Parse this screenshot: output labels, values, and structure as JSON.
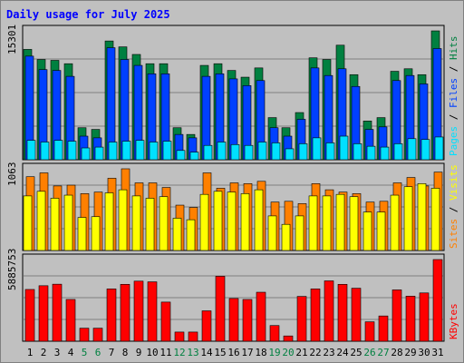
{
  "title": "Daily usage for July 2025",
  "colors": {
    "background": "#c0c0c0",
    "title": "#0000ff",
    "hits": "#008040",
    "files": "#0040ff",
    "pages": "#00e0ff",
    "visits": "#ffff00",
    "sites": "#ff8000",
    "kbytes": "#ff0000",
    "weekend_label": "#008040"
  },
  "chart_data": [
    {
      "type": "bar",
      "panel": "hits-files-pages",
      "ymax_label": "15301",
      "ylim": [
        0,
        15301
      ],
      "legend": [
        {
          "label": "Hits",
          "color": "#008040"
        },
        {
          "label": "Files",
          "color": "#0040ff"
        },
        {
          "label": "Pages",
          "color": "#00e0ff"
        }
      ],
      "legend_separator": " / ",
      "categories": [
        "1",
        "2",
        "3",
        "4",
        "5",
        "6",
        "7",
        "8",
        "9",
        "10",
        "11",
        "12",
        "13",
        "14",
        "15",
        "16",
        "17",
        "18",
        "19",
        "20",
        "21",
        "22",
        "23",
        "24",
        "25",
        "26",
        "27",
        "28",
        "29",
        "30",
        "31"
      ],
      "series": [
        {
          "name": "Hits",
          "values": [
            13100,
            11900,
            11800,
            11400,
            3800,
            3600,
            14100,
            13400,
            12500,
            11400,
            11400,
            3800,
            3000,
            11200,
            11400,
            10600,
            9800,
            10900,
            5000,
            3800,
            5600,
            12100,
            11900,
            13600,
            10100,
            4600,
            5000,
            10500,
            10800,
            10100,
            15300
          ]
        },
        {
          "name": "Files",
          "values": [
            12300,
            10700,
            10600,
            9900,
            2800,
            2600,
            13300,
            11900,
            11200,
            10200,
            10200,
            3000,
            2600,
            9900,
            10200,
            9600,
            8800,
            9400,
            3800,
            2800,
            4800,
            10900,
            10000,
            10800,
            8700,
            3600,
            3900,
            9400,
            10000,
            9000,
            13200
          ]
        },
        {
          "name": "Pages",
          "values": [
            2300,
            2100,
            2300,
            2200,
            1400,
            1500,
            2100,
            2200,
            2300,
            2100,
            2200,
            1100,
            900,
            1700,
            2100,
            1800,
            1700,
            2100,
            2000,
            1300,
            1900,
            2600,
            2000,
            2800,
            1900,
            1600,
            1500,
            1900,
            2500,
            2400,
            2700
          ]
        }
      ],
      "weekend_categories": [
        "5",
        "6",
        "12",
        "13",
        "19",
        "20",
        "26",
        "27"
      ]
    },
    {
      "type": "bar",
      "panel": "visits-sites",
      "ymax_label": "1063",
      "ylim": [
        0,
        1063
      ],
      "legend": [
        {
          "label": "Visits",
          "color": "#ffff00"
        },
        {
          "label": "Sites",
          "color": "#ff8000"
        }
      ],
      "legend_separator": " / ",
      "series": [
        {
          "name": "Visits",
          "values": [
            710,
            770,
            680,
            720,
            430,
            440,
            750,
            790,
            710,
            680,
            700,
            420,
            400,
            730,
            770,
            760,
            740,
            790,
            450,
            340,
            450,
            710,
            710,
            730,
            700,
            500,
            500,
            720,
            830,
            870,
            810
          ]
        },
        {
          "name": "Sites",
          "values": [
            960,
            1010,
            840,
            850,
            740,
            760,
            940,
            1063,
            880,
            880,
            820,
            590,
            560,
            1010,
            810,
            880,
            870,
            900,
            630,
            640,
            610,
            870,
            790,
            760,
            740,
            630,
            640,
            880,
            950,
            840,
            1020
          ]
        }
      ]
    },
    {
      "type": "bar",
      "panel": "kbytes",
      "ymax_label": "5885753",
      "ylim": [
        0,
        5885753
      ],
      "legend": [
        {
          "label": "KBytes",
          "color": "#ff0000"
        }
      ],
      "series": [
        {
          "name": "KBytes",
          "values": [
            3730000,
            4000000,
            4110000,
            3010000,
            940000,
            940000,
            3770000,
            4100000,
            4330000,
            4280000,
            2820000,
            660000,
            660000,
            2190000,
            4680000,
            3080000,
            3010000,
            3530000,
            1130000,
            380000,
            3230000,
            3770000,
            4350000,
            4100000,
            3820000,
            1400000,
            1820000,
            3700000,
            3250000,
            3480000,
            5885753
          ]
        }
      ]
    }
  ]
}
